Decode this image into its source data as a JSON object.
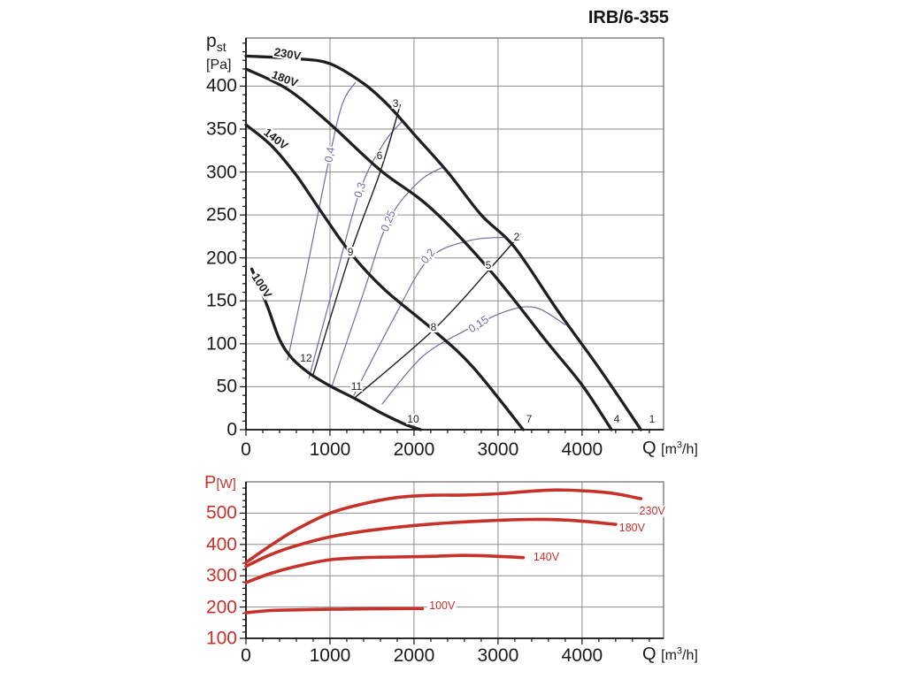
{
  "title": "IRB/6-355",
  "colors": {
    "curve_black": "#1f1f1f",
    "eta_blue": "#6d6da6",
    "power_red": "#c6322a",
    "grid": "#8c8c8c",
    "frame": "#666666",
    "axis": "#111111",
    "red_text": "#c6322a",
    "black_text": "#1a1a1a"
  },
  "axis_titles": {
    "pressure_y": {
      "sym": "p",
      "sub": "st",
      "unit": "[Pa]"
    },
    "power_y": {
      "sym": "P",
      "unit": "[W]"
    },
    "flow_x": {
      "sym": "Q",
      "pre": "[m",
      "sup": "3",
      "post": "/h]"
    }
  },
  "chart_data": [
    {
      "id": "pressure",
      "type": "line",
      "ylabel": "pst [Pa]",
      "xlabel": "Q [m3/h]",
      "x_range": [
        0,
        4970
      ],
      "y_range": [
        0,
        456
      ],
      "x_ticks": [
        0,
        1000,
        2000,
        3000,
        4000
      ],
      "y_ticks": [
        0,
        50,
        100,
        150,
        200,
        250,
        300,
        350,
        400
      ],
      "x_minor_step": 200,
      "y_minor_step": 10,
      "grid": true,
      "series": [
        {
          "name": "230V",
          "points": [
            [
              0,
              435
            ],
            [
              600,
              432
            ],
            [
              1000,
              426
            ],
            [
              1400,
              403
            ],
            [
              1700,
              377
            ],
            [
              2000,
              344
            ],
            [
              2400,
              300
            ],
            [
              2800,
              250
            ],
            [
              3200,
              212
            ],
            [
              3700,
              140
            ],
            [
              4200,
              72
            ],
            [
              4700,
              0
            ]
          ]
        },
        {
          "name": "180V",
          "points": [
            [
              0,
              420
            ],
            [
              500,
              396
            ],
            [
              1000,
              356
            ],
            [
              1600,
              302
            ],
            [
              2200,
              258
            ],
            [
              2900,
              186
            ],
            [
              3600,
              100
            ],
            [
              4000,
              52
            ],
            [
              4350,
              0
            ]
          ]
        },
        {
          "name": "140V",
          "points": [
            [
              0,
              355
            ],
            [
              300,
              331
            ],
            [
              600,
              296
            ],
            [
              900,
              253
            ],
            [
              1250,
              205
            ],
            [
              1650,
              163
            ],
            [
              2230,
              116
            ],
            [
              2700,
              73
            ],
            [
              3300,
              0
            ]
          ]
        },
        {
          "name": "100V",
          "points": [
            [
              70,
              187
            ],
            [
              250,
              145
            ],
            [
              400,
              105
            ],
            [
              550,
              83
            ],
            [
              750,
              66
            ],
            [
              1000,
              51
            ],
            [
              1300,
              36
            ],
            [
              1600,
              20
            ],
            [
              1900,
              6
            ],
            [
              2080,
              0
            ]
          ]
        }
      ],
      "eta_series": [
        {
          "name": "0,4",
          "points": [
            [
              495,
              81
            ],
            [
              700,
              175
            ],
            [
              1000,
              320
            ],
            [
              1150,
              380
            ],
            [
              1300,
              404
            ]
          ]
        },
        {
          "name": "0,3",
          "points": [
            [
              750,
              60
            ],
            [
              1050,
              170
            ],
            [
              1358,
              279
            ],
            [
              1650,
              335
            ],
            [
              1850,
              358
            ]
          ]
        },
        {
          "name": "0,25",
          "points": [
            [
              1020,
              50
            ],
            [
              1400,
              160
            ],
            [
              1695,
              243
            ],
            [
              2050,
              288
            ],
            [
              2350,
              306
            ]
          ]
        },
        {
          "name": "0,2",
          "points": [
            [
              1284,
              40
            ],
            [
              1750,
              128
            ],
            [
              2170,
              198
            ],
            [
              2650,
              220
            ],
            [
              3080,
              224
            ]
          ]
        },
        {
          "name": "0,15",
          "points": [
            [
              1620,
              30
            ],
            [
              2100,
              85
            ],
            [
              2600,
              115
            ],
            [
              3100,
              138
            ],
            [
              3450,
              142
            ],
            [
              3800,
              122
            ]
          ]
        }
      ],
      "system_lines": [
        {
          "name": "duty-line-a",
          "points": [
            [
              800,
              64
            ],
            [
              1243,
              205
            ],
            [
              1601,
              301
            ],
            [
              1835,
              378
            ]
          ]
        },
        {
          "name": "duty-line-b",
          "points": [
            [
              1305,
              38
            ],
            [
              2240,
              117
            ],
            [
              2890,
              186
            ],
            [
              3270,
              228
            ]
          ]
        }
      ],
      "point_labels": [
        {
          "text": "1",
          "q": 4833,
          "p": 12
        },
        {
          "text": "2",
          "q": 3222,
          "p": 224
        },
        {
          "text": "3",
          "q": 1780,
          "p": 380
        },
        {
          "text": "4",
          "q": 4412,
          "p": 12
        },
        {
          "text": "5",
          "q": 2885,
          "p": 191
        },
        {
          "text": "6",
          "q": 1590,
          "p": 319
        },
        {
          "text": "7",
          "q": 3369,
          "p": 12
        },
        {
          "text": "8",
          "q": 2232,
          "p": 119
        },
        {
          "text": "9",
          "q": 1243,
          "p": 207
        },
        {
          "text": "10",
          "q": 1990,
          "p": 12
        },
        {
          "text": "11",
          "q": 1316,
          "p": 50
        },
        {
          "text": "12",
          "q": 716,
          "p": 83
        }
      ],
      "curve_labels": [
        {
          "text": "230V",
          "q": 495,
          "p": 437,
          "rot": 10
        },
        {
          "text": "180V",
          "q": 463,
          "p": 409,
          "rot": 21
        },
        {
          "text": "140V",
          "q": 358,
          "p": 339,
          "rot": 38
        },
        {
          "text": "100V",
          "q": 190,
          "p": 168,
          "rot": 57
        }
      ],
      "eta_labels": [
        {
          "text": "0,4",
          "q": 1000,
          "p": 320,
          "rot": -80
        },
        {
          "text": "0,3",
          "q": 1358,
          "p": 279,
          "rot": -72
        },
        {
          "text": "0,25",
          "q": 1695,
          "p": 243,
          "rot": -68
        },
        {
          "text": "0,2",
          "q": 2169,
          "p": 202,
          "rot": -52
        },
        {
          "text": "0,15",
          "q": 2769,
          "p": 123,
          "rot": -33
        }
      ]
    },
    {
      "id": "power",
      "type": "line",
      "ylabel": "P [W]",
      "xlabel": "Q [m3/h]",
      "x_range": [
        0,
        4970
      ],
      "y_range": [
        100,
        600
      ],
      "x_ticks": [
        0,
        1000,
        2000,
        3000,
        4000
      ],
      "y_ticks": [
        100,
        200,
        300,
        400,
        500
      ],
      "x_minor_step": 200,
      "y_minor_step": 20,
      "grid": true,
      "series": [
        {
          "name": "230V",
          "points": [
            [
              0,
              342
            ],
            [
              300,
              398
            ],
            [
              600,
              448
            ],
            [
              1000,
              500
            ],
            [
              1400,
              530
            ],
            [
              1800,
              550
            ],
            [
              2200,
              557
            ],
            [
              2600,
              558
            ],
            [
              3000,
              562
            ],
            [
              3400,
              570
            ],
            [
              3700,
              574
            ],
            [
              4100,
              570
            ],
            [
              4400,
              562
            ],
            [
              4700,
              546
            ]
          ]
        },
        {
          "name": "180V",
          "points": [
            [
              0,
              330
            ],
            [
              300,
              368
            ],
            [
              600,
              396
            ],
            [
              1000,
              424
            ],
            [
              1400,
              442
            ],
            [
              1800,
              455
            ],
            [
              2200,
              465
            ],
            [
              2600,
              472
            ],
            [
              3000,
              477
            ],
            [
              3400,
              480
            ],
            [
              3800,
              478
            ],
            [
              4100,
              472
            ],
            [
              4400,
              464
            ]
          ]
        },
        {
          "name": "140V",
          "points": [
            [
              0,
              278
            ],
            [
              300,
              308
            ],
            [
              600,
              330
            ],
            [
              1000,
              351
            ],
            [
              1400,
              358
            ],
            [
              1800,
              360
            ],
            [
              2200,
              362
            ],
            [
              2600,
              365
            ],
            [
              3000,
              362
            ],
            [
              3300,
              358
            ]
          ]
        },
        {
          "name": "100V",
          "points": [
            [
              0,
              182
            ],
            [
              300,
              189
            ],
            [
              600,
              191
            ],
            [
              1000,
              193
            ],
            [
              1400,
              194
            ],
            [
              1800,
              195
            ],
            [
              2100,
              195
            ]
          ]
        }
      ],
      "curve_labels": [
        {
          "text": "230V",
          "q": 4660,
          "p": 506,
          "rot": 0
        },
        {
          "text": "180V",
          "q": 4420,
          "p": 452,
          "rot": 0
        },
        {
          "text": "140V",
          "q": 3400,
          "p": 359,
          "rot": 0
        },
        {
          "text": "100V",
          "q": 2160,
          "p": 204,
          "rot": 0
        }
      ]
    }
  ]
}
